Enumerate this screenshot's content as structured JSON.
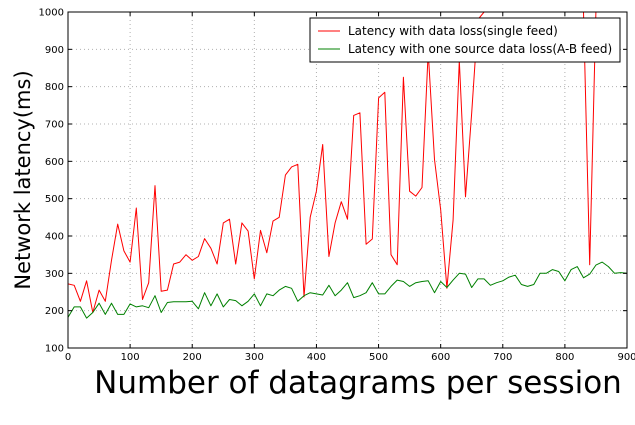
{
  "chart_data": {
    "type": "line",
    "title": "",
    "xlabel": "Number of datagrams per session",
    "ylabel": "Network latency(ms)",
    "xlim": [
      0,
      900
    ],
    "ylim": [
      100,
      1000
    ],
    "xticks": [
      0,
      100,
      200,
      300,
      400,
      500,
      600,
      700,
      800,
      900
    ],
    "yticks": [
      100,
      200,
      300,
      400,
      500,
      600,
      700,
      800,
      900,
      1000
    ],
    "grid": true,
    "legend_position": "top-right",
    "series": [
      {
        "name": "Latency with data loss(single feed)",
        "color": "#ff0000",
        "x": [
          0,
          10,
          20,
          30,
          40,
          50,
          60,
          70,
          80,
          90,
          100,
          110,
          120,
          130,
          140,
          150,
          160,
          170,
          180,
          190,
          200,
          210,
          220,
          230,
          240,
          250,
          260,
          270,
          280,
          290,
          300,
          310,
          320,
          330,
          340,
          350,
          360,
          370,
          380,
          390,
          400,
          410,
          420,
          430,
          440,
          450,
          460,
          470,
          480,
          490,
          500,
          510,
          520,
          530,
          540,
          550,
          560,
          570,
          580,
          590,
          600,
          610,
          620,
          630,
          640,
          650,
          660,
          670,
          680,
          690,
          700,
          710,
          720,
          730,
          740,
          750,
          760,
          770,
          780,
          790,
          800,
          810,
          820,
          830,
          840,
          850,
          860,
          870,
          880,
          890,
          900
        ],
        "y": [
          272,
          268,
          225,
          280,
          195,
          255,
          225,
          335,
          432,
          360,
          330,
          475,
          230,
          275,
          535,
          252,
          255,
          325,
          330,
          350,
          335,
          345,
          393,
          367,
          325,
          435,
          445,
          325,
          435,
          413,
          285,
          415,
          355,
          440,
          450,
          563,
          585,
          592,
          237,
          450,
          520,
          645,
          345,
          435,
          492,
          445,
          723,
          730,
          378,
          392,
          770,
          785,
          350,
          323,
          825,
          520,
          507,
          530,
          893,
          605,
          470,
          260,
          443,
          870,
          505,
          730,
          980,
          1000,
          1000,
          1000,
          1000,
          1000,
          1000,
          1000,
          1000,
          1000,
          1000,
          1000,
          1000,
          1000,
          1000,
          1000,
          1000,
          1000,
          323,
          1000,
          1000,
          1000,
          1000,
          1000,
          1000
        ]
      },
      {
        "name": "Latency with one source data loss(A-B feed)",
        "color": "#008000",
        "x": [
          0,
          10,
          20,
          30,
          40,
          50,
          60,
          70,
          80,
          90,
          100,
          110,
          120,
          130,
          140,
          150,
          160,
          170,
          180,
          190,
          200,
          210,
          220,
          230,
          240,
          250,
          260,
          270,
          280,
          290,
          300,
          310,
          320,
          330,
          340,
          350,
          360,
          370,
          380,
          390,
          400,
          410,
          420,
          430,
          440,
          450,
          460,
          470,
          480,
          490,
          500,
          510,
          520,
          530,
          540,
          550,
          560,
          570,
          580,
          590,
          600,
          610,
          620,
          630,
          640,
          650,
          660,
          670,
          680,
          690,
          700,
          710,
          720,
          730,
          740,
          750,
          760,
          770,
          780,
          790,
          800,
          810,
          820,
          830,
          840,
          850,
          860,
          870,
          880,
          890,
          900
        ],
        "y": [
          182,
          210,
          210,
          180,
          195,
          220,
          190,
          220,
          190,
          190,
          218,
          210,
          213,
          208,
          240,
          195,
          222,
          224,
          224,
          224,
          225,
          205,
          248,
          213,
          245,
          210,
          230,
          227,
          213,
          225,
          245,
          213,
          245,
          240,
          255,
          265,
          260,
          225,
          240,
          248,
          245,
          242,
          268,
          240,
          255,
          275,
          235,
          240,
          248,
          275,
          245,
          245,
          265,
          282,
          278,
          265,
          275,
          278,
          280,
          248,
          278,
          262,
          282,
          300,
          298,
          262,
          285,
          285,
          268,
          275,
          280,
          290,
          295,
          270,
          265,
          270,
          300,
          300,
          310,
          305,
          280,
          310,
          318,
          288,
          298,
          322,
          330,
          318,
          300,
          302,
          300
        ]
      }
    ]
  }
}
